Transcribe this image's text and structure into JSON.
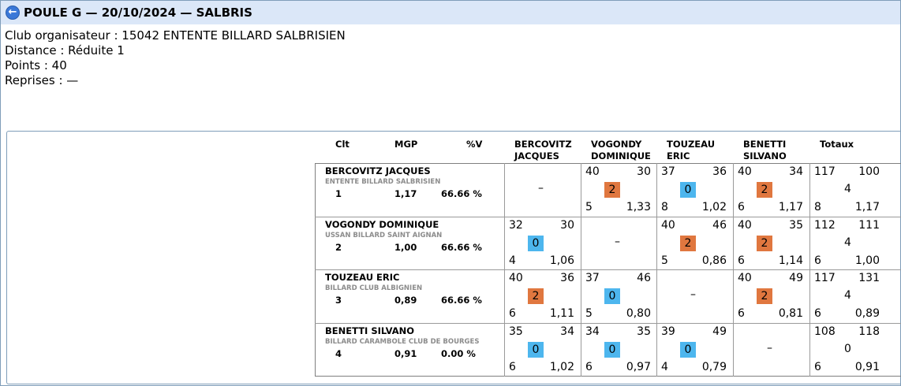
{
  "title": "POULE G — 20/10/2024 — SALBRIS",
  "info": {
    "club": "Club organisateur : 15042 ENTENTE BILLARD SALBRISIEN",
    "distance": "Distance : Réduite 1",
    "points": "Points : 40",
    "reprises": "Reprises : —"
  },
  "headers": {
    "clt": "Clt",
    "mgp": "MGP",
    "pv": "%V",
    "opponents": [
      {
        "line1": "BERCOVITZ",
        "line2": "JACQUES"
      },
      {
        "line1": "VOGONDY",
        "line2": "DOMINIQUE"
      },
      {
        "line1": "TOUZEAU",
        "line2": "ERIC"
      },
      {
        "line1": "BENETTI",
        "line2": "SILVANO"
      }
    ],
    "totaux": "Totaux"
  },
  "colors": {
    "win": "#e0773f",
    "loss": "#4db6ee",
    "title_bg": "#dbe7f8"
  },
  "rows": [
    {
      "name": "BERCOVITZ JACQUES",
      "club": "ENTENTE BILLARD SALBRISIEN",
      "clt": "1",
      "mgp": "1,17",
      "pv": "66.66 %",
      "cells": [
        {
          "self": true,
          "dash": "–"
        },
        {
          "pts": "40",
          "opp": "30",
          "score": "2",
          "rep": "5",
          "moy": "1,33"
        },
        {
          "pts": "37",
          "opp": "36",
          "score": "0",
          "rep": "8",
          "moy": "1,02"
        },
        {
          "pts": "40",
          "opp": "34",
          "score": "2",
          "rep": "6",
          "moy": "1,17"
        }
      ],
      "total": {
        "pts": "117",
        "opp": "100",
        "score": "4",
        "rep": "8",
        "moy": "1,17"
      }
    },
    {
      "name": "VOGONDY DOMINIQUE",
      "club": "USSAN BILLARD SAINT AIGNAN",
      "clt": "2",
      "mgp": "1,00",
      "pv": "66.66 %",
      "cells": [
        {
          "pts": "32",
          "opp": "30",
          "score": "0",
          "rep": "4",
          "moy": "1,06"
        },
        {
          "self": true,
          "dash": "–"
        },
        {
          "pts": "40",
          "opp": "46",
          "score": "2",
          "rep": "5",
          "moy": "0,86"
        },
        {
          "pts": "40",
          "opp": "35",
          "score": "2",
          "rep": "6",
          "moy": "1,14"
        }
      ],
      "total": {
        "pts": "112",
        "opp": "111",
        "score": "4",
        "rep": "6",
        "moy": "1,00"
      }
    },
    {
      "name": "TOUZEAU ERIC",
      "club": "BILLARD CLUB ALBIGNIEN",
      "clt": "3",
      "mgp": "0,89",
      "pv": "66.66 %",
      "cells": [
        {
          "pts": "40",
          "opp": "36",
          "score": "2",
          "rep": "6",
          "moy": "1,11"
        },
        {
          "pts": "37",
          "opp": "46",
          "score": "0",
          "rep": "5",
          "moy": "0,80"
        },
        {
          "self": true,
          "dash": "–"
        },
        {
          "pts": "40",
          "opp": "49",
          "score": "2",
          "rep": "6",
          "moy": "0,81"
        }
      ],
      "total": {
        "pts": "117",
        "opp": "131",
        "score": "4",
        "rep": "6",
        "moy": "0,89"
      }
    },
    {
      "name": "BENETTI SILVANO",
      "club": "BILLARD CARAMBOLE CLUB DE BOURGES",
      "clt": "4",
      "mgp": "0,91",
      "pv": "0.00 %",
      "cells": [
        {
          "pts": "35",
          "opp": "34",
          "score": "0",
          "rep": "6",
          "moy": "1,02"
        },
        {
          "pts": "34",
          "opp": "35",
          "score": "0",
          "rep": "6",
          "moy": "0,97"
        },
        {
          "pts": "39",
          "opp": "49",
          "score": "0",
          "rep": "4",
          "moy": "0,79"
        },
        {
          "self": true,
          "dash": "–"
        }
      ],
      "total": {
        "pts": "108",
        "opp": "118",
        "score": "0",
        "rep": "6",
        "moy": "0,91"
      }
    }
  ]
}
